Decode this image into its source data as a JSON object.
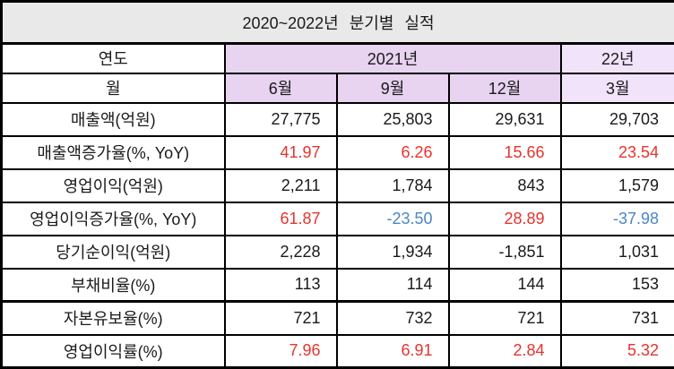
{
  "colors": {
    "title_bg": "#e9e9e9",
    "header_bg": "#e8d3f1",
    "header_bg_light": "#f1e3fa",
    "border": "#000000",
    "text": "#1a1a1a",
    "positive": "#e5342e",
    "negative": "#4e86c6"
  },
  "chart_data": {
    "type": "table",
    "title": "2020~2022년 분기별 실적",
    "header": {
      "year_label": "연도",
      "month_label": "월",
      "year_groups": [
        {
          "label": "2021년",
          "span": 3
        },
        {
          "label": "22년",
          "span": 1
        }
      ],
      "months": [
        "6월",
        "9월",
        "12월",
        "3월"
      ]
    },
    "rows": [
      {
        "label": "매출액(억원)",
        "values": [
          "27,775",
          "25,803",
          "29,631",
          "29,703"
        ],
        "value_colors": [
          "black",
          "black",
          "black",
          "black"
        ]
      },
      {
        "label": "매출액증가율(%, YoY)",
        "values": [
          "41.97",
          "6.26",
          "15.66",
          "23.54"
        ],
        "value_colors": [
          "red",
          "red",
          "red",
          "red"
        ]
      },
      {
        "label": "영업이익(억원)",
        "values": [
          "2,211",
          "1,784",
          "843",
          "1,579"
        ],
        "value_colors": [
          "black",
          "black",
          "black",
          "black"
        ]
      },
      {
        "label": "영업이익증가율(%, YoY)",
        "values": [
          "61.87",
          "-23.50",
          "28.89",
          "-37.98"
        ],
        "value_colors": [
          "red",
          "blue",
          "red",
          "blue"
        ]
      },
      {
        "label": "당기순이익(억원)",
        "values": [
          "2,228",
          "1,934",
          "-1,851",
          "1,031"
        ],
        "value_colors": [
          "black",
          "black",
          "black",
          "black"
        ]
      },
      {
        "label": "부채비율(%)",
        "values": [
          "113",
          "114",
          "144",
          "153"
        ],
        "value_colors": [
          "black",
          "black",
          "black",
          "black"
        ]
      },
      {
        "label": "자본유보율(%)",
        "values": [
          "721",
          "732",
          "721",
          "731"
        ],
        "value_colors": [
          "black",
          "black",
          "black",
          "black"
        ]
      },
      {
        "label": "영업이익률(%)",
        "values": [
          "7.96",
          "6.91",
          "2.84",
          "5.32"
        ],
        "value_colors": [
          "red",
          "red",
          "red",
          "red"
        ]
      }
    ]
  }
}
